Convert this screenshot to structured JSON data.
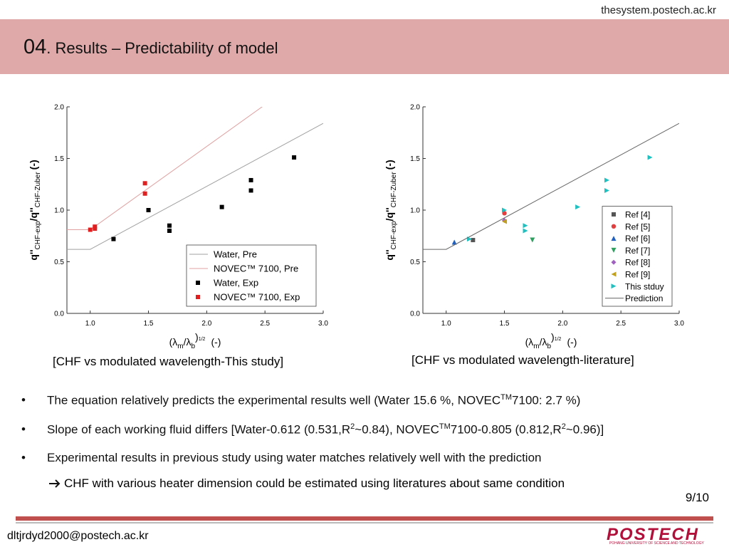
{
  "header": {
    "site": "thesystem.postech.ac.kr",
    "number": "04",
    "title": ". Results – Predictability of model"
  },
  "chart_data": [
    {
      "type": "scatter",
      "y_label": [
        "q''",
        "CHF-exp",
        "/q''",
        "CHF-Zuber",
        "(-)"
      ],
      "x_label": [
        "(λ",
        "m",
        "/λ",
        "b",
        ")",
        "1/2",
        "(-)"
      ],
      "xlim": [
        0.8,
        3.0
      ],
      "ylim": [
        0,
        2.0
      ],
      "xticks": [
        {
          "value": 1,
          "label": "1.0"
        },
        {
          "value": 1.5,
          "label": "1.5"
        },
        {
          "value": 2,
          "label": "2.0"
        },
        {
          "value": 2.5,
          "label": "2.5"
        },
        {
          "value": 3,
          "label": "3.0"
        }
      ],
      "yticks": [
        {
          "value": 0,
          "label": "0.0"
        },
        {
          "value": 0.5,
          "label": "0.5"
        },
        {
          "value": 1,
          "label": "1.0"
        },
        {
          "value": 1.5,
          "label": "1.5"
        },
        {
          "value": 2,
          "label": "2.0"
        }
      ],
      "legend": "lower right",
      "series": [
        {
          "name": "Water, Pre",
          "type": "line",
          "color": "#a0a0a0",
          "x": [
            0.8,
            1.0,
            3.0
          ],
          "values": [
            0.62,
            0.62,
            1.84
          ]
        },
        {
          "name": "NOVEC™ 7100, Pre",
          "type": "line",
          "color": "#e0a0a0",
          "x": [
            0.8,
            1.0,
            2.5
          ],
          "values": [
            0.81,
            0.81,
            2.02
          ]
        },
        {
          "name": "Water, Exp",
          "type": "scatter",
          "marker": "s",
          "color": "#000000",
          "x": [
            1.2,
            1.5,
            1.68,
            1.68,
            2.13,
            2.38,
            2.38,
            2.75
          ],
          "values": [
            0.72,
            1.0,
            0.85,
            0.8,
            1.03,
            1.29,
            1.19,
            1.51
          ]
        },
        {
          "name": "NOVEC™ 7100, Exp",
          "type": "scatter",
          "marker": "s",
          "color": "#e02020",
          "x": [
            1.0,
            1.04,
            1.04,
            1.47,
            1.47
          ],
          "values": [
            0.81,
            0.82,
            0.84,
            1.26,
            1.16
          ]
        }
      ]
    },
    {
      "type": "scatter",
      "y_label": [
        "q''",
        "CHF-exp",
        "/q''",
        "CHF-Zuber",
        "(-)"
      ],
      "x_label": [
        "(λ",
        "m",
        "/λ",
        "b",
        ")",
        "1/2",
        "(-)"
      ],
      "xlim": [
        0.8,
        3.0
      ],
      "ylim": [
        0,
        2.0
      ],
      "xticks": [
        {
          "value": 1,
          "label": "1.0"
        },
        {
          "value": 1.5,
          "label": "1.5"
        },
        {
          "value": 2,
          "label": "2.0"
        },
        {
          "value": 2.5,
          "label": "2.5"
        },
        {
          "value": 3,
          "label": "3.0"
        }
      ],
      "yticks": [
        {
          "value": 0,
          "label": "0.0"
        },
        {
          "value": 0.5,
          "label": "0.5"
        },
        {
          "value": 1,
          "label": "1.0"
        },
        {
          "value": 1.5,
          "label": "1.5"
        },
        {
          "value": 2,
          "label": "2.0"
        }
      ],
      "legend": "lower right",
      "series": [
        {
          "name": "Ref [4]",
          "type": "scatter",
          "marker": "s",
          "color": "#555555",
          "x": [
            1.23
          ],
          "values": [
            0.71
          ]
        },
        {
          "name": "Ref [5]",
          "type": "scatter",
          "marker": "o",
          "color": "#e04040",
          "x": [
            1.5
          ],
          "values": [
            0.97
          ]
        },
        {
          "name": "Ref [6]",
          "type": "scatter",
          "marker": "^",
          "color": "#2060c0",
          "x": [
            1.07
          ],
          "values": [
            0.69
          ]
        },
        {
          "name": "Ref [7]",
          "type": "scatter",
          "marker": "v",
          "color": "#30a060",
          "x": [
            1.74
          ],
          "values": [
            0.71
          ]
        },
        {
          "name": "Ref [8]",
          "type": "scatter",
          "marker": "D",
          "color": "#a060c0",
          "x": [
            1.5
          ],
          "values": [
            0.9
          ]
        },
        {
          "name": "Ref [9]",
          "type": "scatter",
          "marker": "<",
          "color": "#c0a020",
          "x": [
            1.5
          ],
          "values": [
            0.89
          ]
        },
        {
          "name": "This stduy",
          "type": "scatter",
          "marker": ">",
          "color": "#20c0c0",
          "x": [
            1.2,
            1.5,
            1.68,
            1.68,
            2.13,
            2.38,
            2.38,
            2.75
          ],
          "values": [
            0.72,
            1.0,
            0.85,
            0.8,
            1.03,
            1.29,
            1.19,
            1.51
          ]
        },
        {
          "name": "Prediction",
          "type": "line",
          "color": "#666666",
          "x": [
            0.8,
            1.0,
            3.0
          ],
          "values": [
            0.62,
            0.62,
            1.84
          ]
        }
      ]
    }
  ],
  "captions": [
    "[CHF vs modulated wavelength-This study]",
    "[CHF vs modulated wavelength-literature]"
  ],
  "bullets": [
    [
      "The equation relatively predicts the experimental results well (Water 15.6 %, NOVEC",
      "TM",
      "7100: 2.7 %)"
    ],
    [
      "Slope of each working fluid differs [Water-0.612 (0.531,R",
      "2",
      "~0.84), NOVEC",
      "TM",
      "7100-0.805 (0.812,R",
      "2",
      "~0.96)]"
    ],
    [
      "Experimental results in previous study using water matches relatively well with the prediction"
    ]
  ],
  "sub_bullet": "CHF with various heater dimension could be estimated using literatures about same condition",
  "page": "9/10",
  "footer": {
    "email": "dltjrdyd2000@postech.ac.kr",
    "logo": "POSTECH",
    "logo_sub": "POHANG UNIVERSITY OF SCIENCE AND TECHNOLOGY"
  }
}
